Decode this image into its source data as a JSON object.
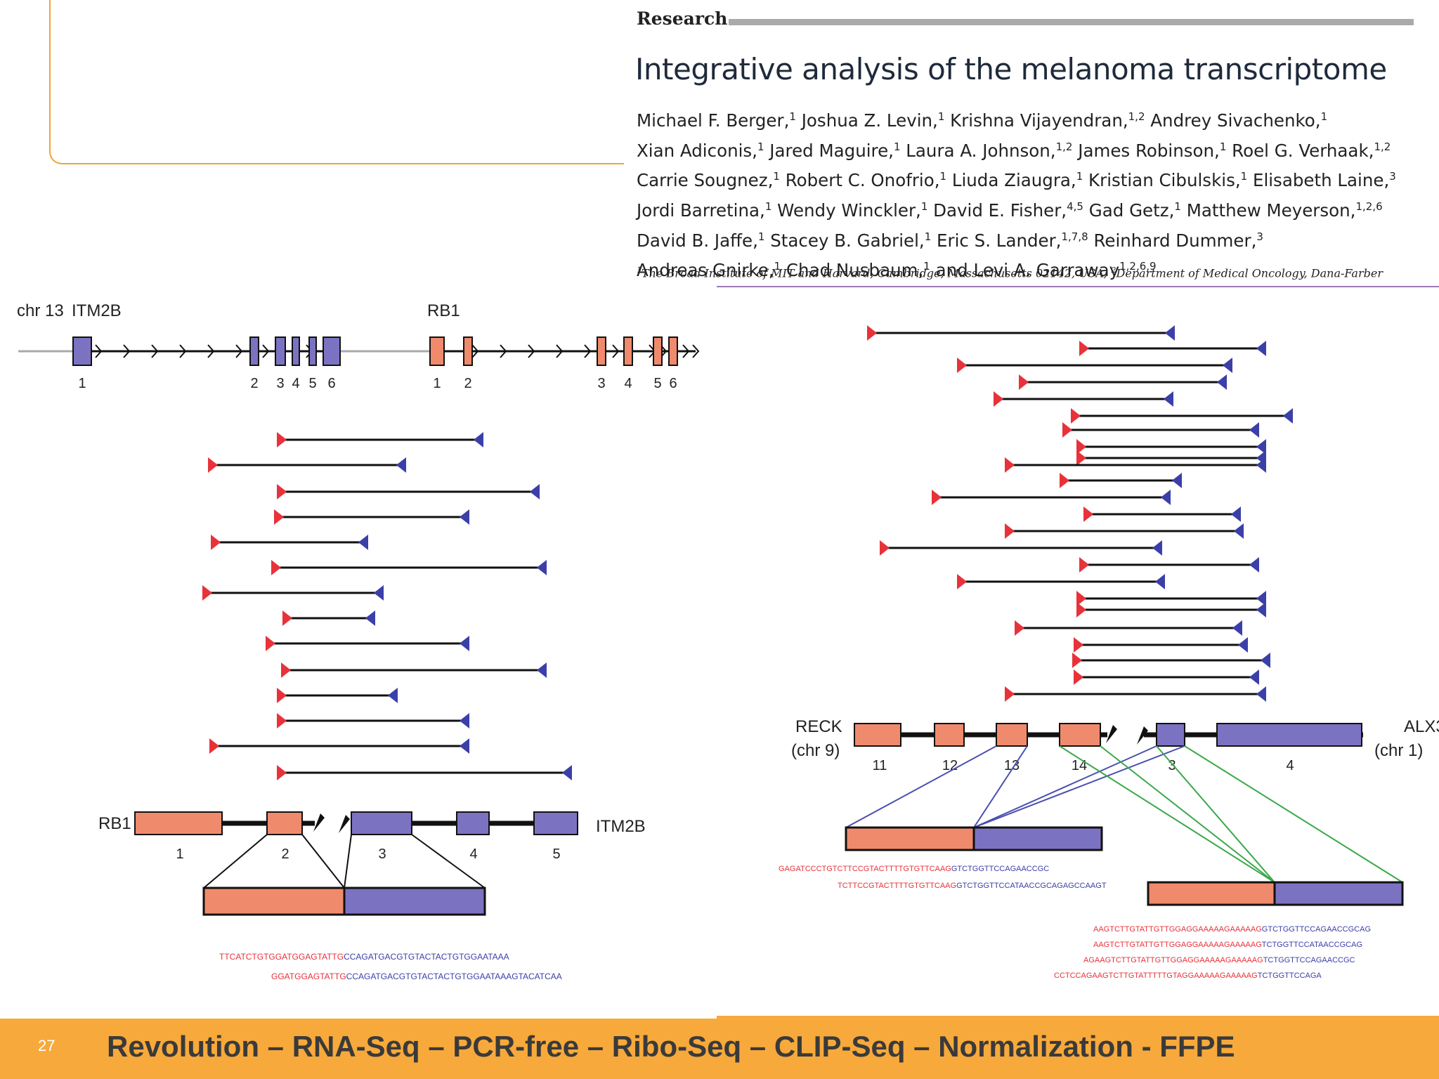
{
  "paper": {
    "section": "Research",
    "title": "Integrative analysis of the melanoma transcriptome",
    "authors": [
      [
        [
          "Michael F. Berger,",
          "1"
        ],
        [
          " Joshua Z. Levin,",
          "1"
        ],
        [
          " Krishna Vijayendran,",
          "1,2"
        ],
        [
          " Andrey Sivachenko,",
          "1"
        ]
      ],
      [
        [
          "Xian Adiconis,",
          "1"
        ],
        [
          " Jared Maguire,",
          "1"
        ],
        [
          " Laura A. Johnson,",
          "1,2"
        ],
        [
          " James Robinson,",
          "1"
        ],
        [
          " Roel G. Verhaak,",
          "1,2"
        ]
      ],
      [
        [
          "Carrie Sougnez,",
          "1"
        ],
        [
          " Robert C. Onofrio,",
          "1"
        ],
        [
          " Liuda Ziaugra,",
          "1"
        ],
        [
          " Kristian Cibulskis,",
          "1"
        ],
        [
          " Elisabeth Laine,",
          "3"
        ]
      ],
      [
        [
          "Jordi Barretina,",
          "1"
        ],
        [
          " Wendy Winckler,",
          "1"
        ],
        [
          " David E. Fisher,",
          "4,5"
        ],
        [
          " Gad Getz,",
          "1"
        ],
        [
          " Matthew Meyerson,",
          "1,2,6"
        ]
      ],
      [
        [
          "David B. Jaffe,",
          "1"
        ],
        [
          " Stacey B. Gabriel,",
          "1"
        ],
        [
          " Eric S. Lander,",
          "1,7,8"
        ],
        [
          " Reinhard Dummer,",
          "3"
        ]
      ],
      [
        [
          "Andreas Gnirke,",
          "1"
        ],
        [
          " Chad Nusbaum,",
          "1"
        ],
        [
          " and Levi A. Garraway",
          "1,2,6,9"
        ]
      ]
    ],
    "affiliation": [
      [
        "",
        "1"
      ],
      [
        "The Broad Institute of MIT and Harvard, Cambridge, Massachusetts 02142, USA; ",
        ""
      ],
      [
        "",
        "2"
      ],
      [
        "Department of Medical Oncology, Dana-Farber",
        ""
      ]
    ]
  },
  "left_figure": {
    "chromosome": "chr 13",
    "gene_a": "ITM2B",
    "gene_b": "RB1",
    "exons_a": [
      "1",
      "2",
      "3",
      "4",
      "5",
      "6"
    ],
    "exons_b": [
      "1",
      "2",
      "3",
      "4",
      "5",
      "6"
    ],
    "fusion_left": "RB1",
    "fusion_right": "ITM2B",
    "fusion_exons": [
      "1",
      "2",
      "3",
      "4",
      "5"
    ],
    "seq1_red": "TTCATCTGTGGATGGAGTATTG",
    "seq1_blue": "CCAGATGACGTGTACTACTGTGGAATAAA",
    "seq2_red": "GGATGGAGTATTG",
    "seq2_blue": "CCAGATGACGTGTACTACTGTGGAATAAAGTACATCAA"
  },
  "right_figure": {
    "gene_left": "RECK",
    "gene_left_chr": "(chr 9)",
    "gene_right": "ALX3",
    "gene_right_chr": "(chr 1)",
    "exons": [
      "11",
      "12",
      "13",
      "14",
      "3",
      "4"
    ],
    "seqA1_red": "GAGATCCCTGTCTTCCGTACTTTTGTGTTCAAG",
    "seqA1_blue": "GTCTGGTTCCAGAACCGC",
    "seqA2_red": "TCTTCCGTACTTTTGTGTTCAAG",
    "seqA2_blue": "GTCTGGTTCCATAACCGCAGAGCCAAGT",
    "seqB1_red": "AAGTCTTGTATTGTTGGAGGAAAAAGAAAAAG",
    "seqB1_blue": "GTCTGGTTCCAGAACCGCAG",
    "seqB2_red": "AAGTCTTGTATTGTTGGAGGAAAAAGAAAAAG",
    "seqB2_blue": "TCTGGTTCCATAACCGCAG",
    "seqB3_red": "AGAAGTCTTGTATTGTTGGAGGAAAAAGAAAAAG",
    "seqB3_blue": "TCTGGTTCCAGAACCGC",
    "seqB4_red": "CCTCCAGAAGTCTTGTATTTTTGTAGGAAAAAGAAAAAG",
    "seqB4_blue": "TCTGGTTCCAGA"
  },
  "colors": {
    "exon_red": "#f08a6c",
    "exon_blue": "#7c72c2",
    "marker_red": "#e8323a",
    "marker_blue": "#3b3fa8",
    "accent": "#f7a93b"
  },
  "footer": {
    "page_number": "27",
    "title": "Revolution – RNA-Seq – PCR-free – Ribo-Seq – CLIP-Seq – Normalization - FFPE"
  }
}
